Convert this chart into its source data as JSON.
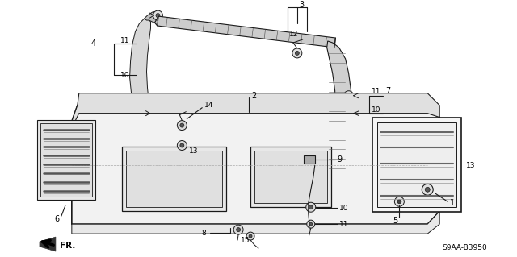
{
  "bg_color": "#ffffff",
  "line_color": "#1a1a1a",
  "fig_width": 6.4,
  "fig_height": 3.19,
  "dpi": 100,
  "diagram_code_id": "S9AA-B3950"
}
